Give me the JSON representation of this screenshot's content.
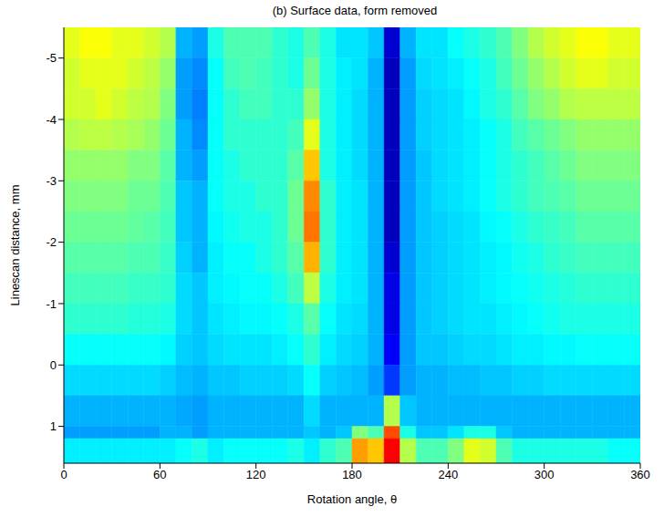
{
  "chart_data": {
    "type": "heatmap",
    "title": "(b) Surface data, form removed",
    "x_label": "Rotation angle, θ",
    "y_label": "Linescan distance, mm",
    "xlim": [
      0,
      360
    ],
    "xticks": [
      0,
      60,
      120,
      180,
      240,
      300,
      360
    ],
    "ylim": [
      -5.5,
      1.6
    ],
    "yticks": [
      -5,
      -4,
      -3,
      -2,
      -1,
      0,
      1
    ],
    "x": [
      0,
      10,
      20,
      30,
      40,
      50,
      60,
      70,
      80,
      90,
      100,
      110,
      120,
      130,
      140,
      150,
      160,
      170,
      180,
      190,
      200,
      210,
      220,
      230,
      240,
      250,
      260,
      270,
      280,
      290,
      300,
      310,
      320,
      330,
      340,
      350,
      360
    ],
    "y": [
      -5.5,
      -5,
      -4.5,
      -4,
      -3.5,
      -3,
      -2.5,
      -2,
      -1.5,
      -1,
      -0.5,
      0,
      0.5,
      1,
      1.2,
      1.6
    ],
    "color_range": [
      0,
      1
    ],
    "cells": [
      [
        0.6,
        0.62,
        0.62,
        0.6,
        0.6,
        0.58,
        0.55,
        0.3,
        0.28,
        0.4,
        0.45,
        0.45,
        0.45,
        0.42,
        0.4,
        0.45,
        0.4,
        0.35,
        0.35,
        0.32,
        0.08,
        0.3,
        0.35,
        0.35,
        0.38,
        0.4,
        0.42,
        0.45,
        0.5,
        0.55,
        0.58,
        0.6,
        0.62,
        0.62,
        0.6,
        0.6
      ],
      [
        0.58,
        0.6,
        0.6,
        0.6,
        0.58,
        0.56,
        0.52,
        0.28,
        0.26,
        0.38,
        0.44,
        0.45,
        0.44,
        0.42,
        0.4,
        0.48,
        0.4,
        0.36,
        0.35,
        0.3,
        0.06,
        0.28,
        0.34,
        0.35,
        0.36,
        0.38,
        0.4,
        0.44,
        0.48,
        0.52,
        0.55,
        0.58,
        0.6,
        0.6,
        0.58,
        0.58
      ],
      [
        0.58,
        0.58,
        0.6,
        0.58,
        0.56,
        0.55,
        0.5,
        0.28,
        0.25,
        0.38,
        0.42,
        0.44,
        0.44,
        0.42,
        0.42,
        0.52,
        0.4,
        0.36,
        0.34,
        0.3,
        0.06,
        0.28,
        0.33,
        0.34,
        0.35,
        0.37,
        0.4,
        0.42,
        0.46,
        0.5,
        0.52,
        0.55,
        0.56,
        0.56,
        0.56,
        0.56
      ],
      [
        0.55,
        0.56,
        0.56,
        0.55,
        0.54,
        0.52,
        0.48,
        0.3,
        0.26,
        0.38,
        0.42,
        0.42,
        0.42,
        0.42,
        0.44,
        0.6,
        0.4,
        0.36,
        0.34,
        0.3,
        0.06,
        0.28,
        0.33,
        0.34,
        0.35,
        0.36,
        0.38,
        0.4,
        0.44,
        0.46,
        0.48,
        0.5,
        0.52,
        0.52,
        0.52,
        0.52
      ],
      [
        0.52,
        0.52,
        0.52,
        0.52,
        0.5,
        0.5,
        0.46,
        0.3,
        0.28,
        0.38,
        0.4,
        0.42,
        0.42,
        0.42,
        0.46,
        0.68,
        0.4,
        0.36,
        0.34,
        0.3,
        0.06,
        0.28,
        0.32,
        0.34,
        0.35,
        0.36,
        0.38,
        0.4,
        0.42,
        0.44,
        0.46,
        0.48,
        0.5,
        0.5,
        0.5,
        0.5
      ],
      [
        0.5,
        0.5,
        0.5,
        0.5,
        0.48,
        0.48,
        0.45,
        0.32,
        0.3,
        0.38,
        0.4,
        0.4,
        0.42,
        0.42,
        0.48,
        0.74,
        0.42,
        0.36,
        0.35,
        0.3,
        0.06,
        0.28,
        0.32,
        0.34,
        0.35,
        0.36,
        0.38,
        0.4,
        0.42,
        0.44,
        0.45,
        0.46,
        0.48,
        0.48,
        0.48,
        0.48
      ],
      [
        0.48,
        0.48,
        0.48,
        0.48,
        0.47,
        0.46,
        0.44,
        0.32,
        0.3,
        0.37,
        0.39,
        0.4,
        0.4,
        0.42,
        0.48,
        0.76,
        0.42,
        0.36,
        0.35,
        0.3,
        0.06,
        0.28,
        0.32,
        0.33,
        0.34,
        0.35,
        0.37,
        0.38,
        0.4,
        0.42,
        0.43,
        0.44,
        0.46,
        0.46,
        0.46,
        0.46
      ],
      [
        0.46,
        0.46,
        0.46,
        0.46,
        0.45,
        0.45,
        0.43,
        0.33,
        0.3,
        0.36,
        0.38,
        0.38,
        0.4,
        0.42,
        0.46,
        0.7,
        0.42,
        0.36,
        0.35,
        0.3,
        0.08,
        0.28,
        0.32,
        0.33,
        0.34,
        0.35,
        0.36,
        0.37,
        0.39,
        0.4,
        0.42,
        0.43,
        0.44,
        0.44,
        0.44,
        0.44
      ],
      [
        0.44,
        0.44,
        0.44,
        0.44,
        0.43,
        0.43,
        0.42,
        0.34,
        0.32,
        0.36,
        0.37,
        0.38,
        0.38,
        0.4,
        0.44,
        0.56,
        0.4,
        0.36,
        0.35,
        0.3,
        0.1,
        0.28,
        0.32,
        0.33,
        0.34,
        0.35,
        0.36,
        0.37,
        0.38,
        0.39,
        0.4,
        0.41,
        0.42,
        0.42,
        0.42,
        0.42
      ],
      [
        0.42,
        0.42,
        0.42,
        0.42,
        0.41,
        0.41,
        0.4,
        0.34,
        0.32,
        0.35,
        0.36,
        0.37,
        0.37,
        0.38,
        0.4,
        0.46,
        0.38,
        0.35,
        0.34,
        0.3,
        0.1,
        0.28,
        0.32,
        0.33,
        0.34,
        0.35,
        0.35,
        0.36,
        0.37,
        0.38,
        0.39,
        0.4,
        0.4,
        0.4,
        0.4,
        0.4
      ],
      [
        0.38,
        0.38,
        0.38,
        0.38,
        0.38,
        0.38,
        0.37,
        0.33,
        0.32,
        0.34,
        0.35,
        0.35,
        0.35,
        0.36,
        0.38,
        0.42,
        0.36,
        0.34,
        0.33,
        0.3,
        0.12,
        0.28,
        0.32,
        0.32,
        0.33,
        0.34,
        0.34,
        0.35,
        0.36,
        0.36,
        0.37,
        0.37,
        0.38,
        0.38,
        0.38,
        0.38
      ],
      [
        0.34,
        0.34,
        0.34,
        0.34,
        0.34,
        0.34,
        0.33,
        0.31,
        0.3,
        0.32,
        0.32,
        0.33,
        0.33,
        0.33,
        0.34,
        0.38,
        0.33,
        0.32,
        0.31,
        0.28,
        0.18,
        0.28,
        0.3,
        0.3,
        0.31,
        0.31,
        0.32,
        0.32,
        0.33,
        0.33,
        0.34,
        0.34,
        0.34,
        0.34,
        0.34,
        0.34
      ],
      [
        0.3,
        0.3,
        0.3,
        0.3,
        0.3,
        0.3,
        0.3,
        0.29,
        0.28,
        0.3,
        0.3,
        0.3,
        0.3,
        0.3,
        0.3,
        0.34,
        0.3,
        0.3,
        0.3,
        0.3,
        0.55,
        0.32,
        0.3,
        0.3,
        0.3,
        0.3,
        0.3,
        0.3,
        0.3,
        0.3,
        0.3,
        0.3,
        0.3,
        0.3,
        0.3,
        0.3
      ],
      [
        0.28,
        0.28,
        0.28,
        0.28,
        0.28,
        0.28,
        0.3,
        0.3,
        0.28,
        0.3,
        0.3,
        0.3,
        0.3,
        0.3,
        0.3,
        0.32,
        0.3,
        0.32,
        0.5,
        0.45,
        0.8,
        0.4,
        0.32,
        0.32,
        0.35,
        0.4,
        0.4,
        0.32,
        0.3,
        0.3,
        0.3,
        0.3,
        0.3,
        0.3,
        0.3,
        0.3
      ],
      [
        0.36,
        0.36,
        0.36,
        0.36,
        0.36,
        0.36,
        0.36,
        0.38,
        0.4,
        0.36,
        0.38,
        0.38,
        0.38,
        0.38,
        0.4,
        0.36,
        0.42,
        0.45,
        0.72,
        0.68,
        0.88,
        0.55,
        0.45,
        0.45,
        0.5,
        0.6,
        0.58,
        0.45,
        0.4,
        0.4,
        0.4,
        0.4,
        0.4,
        0.4,
        0.38,
        0.38
      ]
    ]
  }
}
